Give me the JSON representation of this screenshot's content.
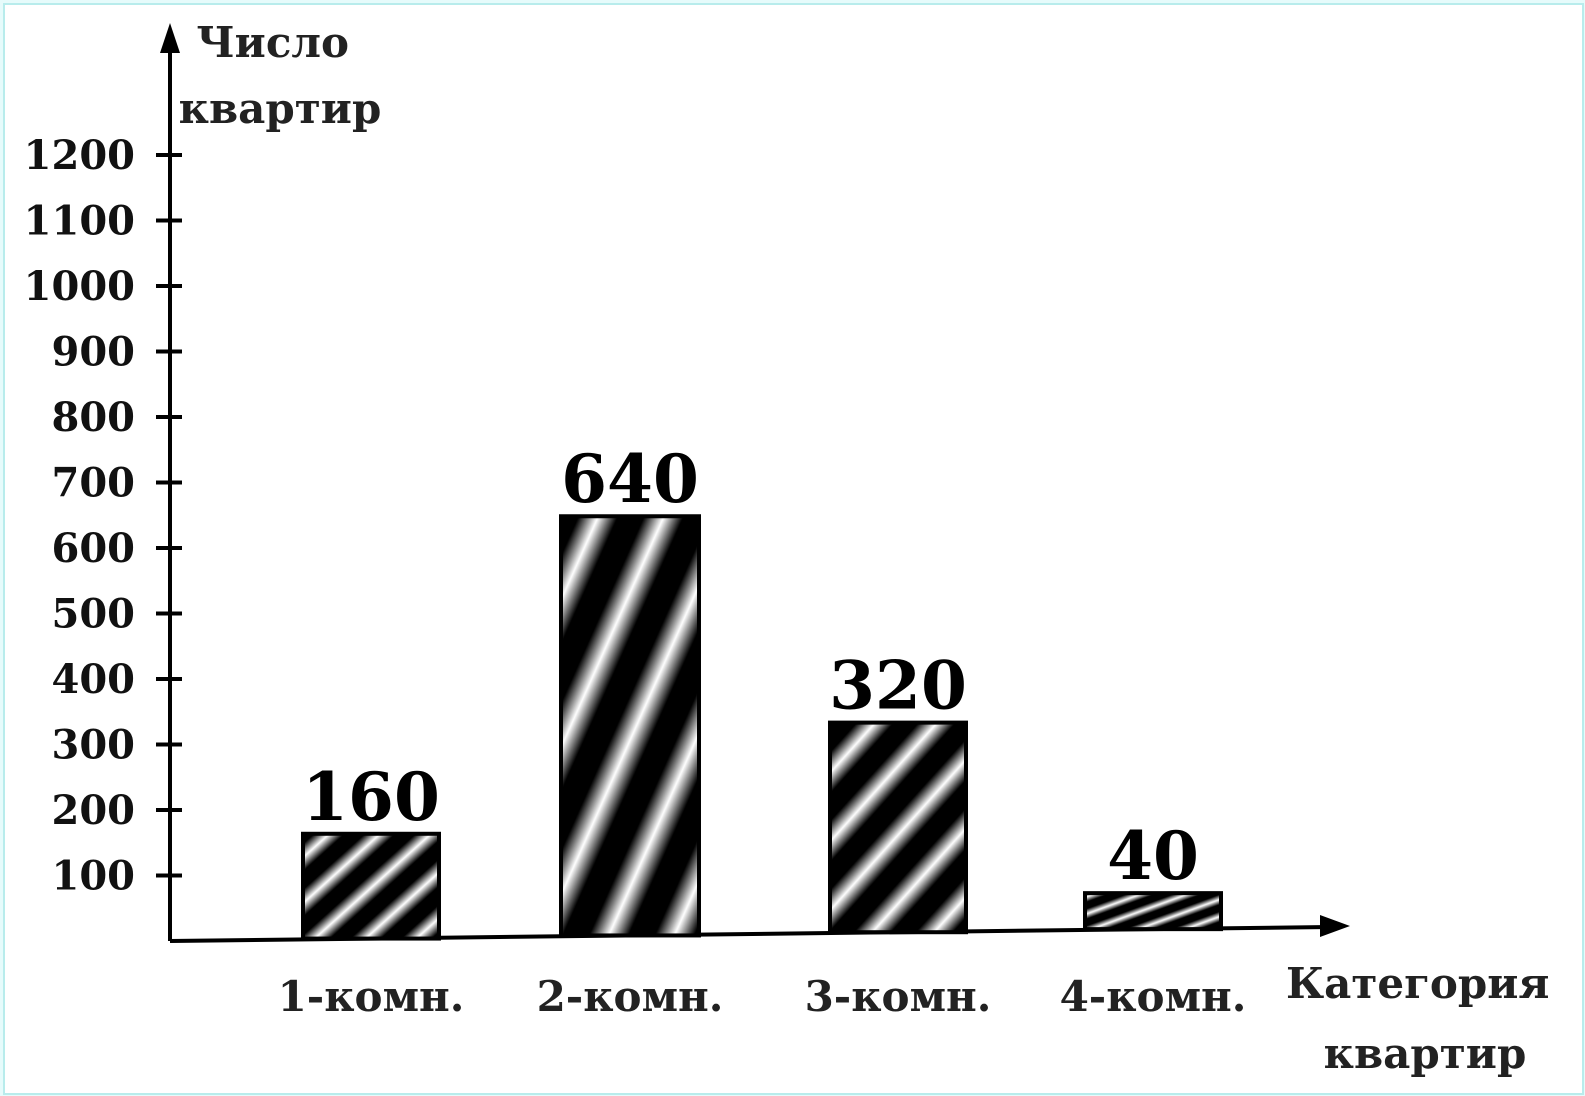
{
  "chart_data": {
    "type": "bar",
    "ylabel_lines": [
      "Число",
      "квартир"
    ],
    "xlabel_lines": [
      "Категория",
      "квартир"
    ],
    "categories": [
      "1-комн.",
      "2-комн.",
      "3-комн.",
      "4-комн."
    ],
    "values": [
      160,
      640,
      320,
      40
    ],
    "value_labels": [
      "160",
      "640",
      "320",
      "40"
    ],
    "yticks": [
      100,
      200,
      300,
      400,
      500,
      600,
      700,
      800,
      900,
      1000,
      1100,
      1200
    ],
    "ytick_labels": [
      "100",
      "200",
      "300",
      "400",
      "500",
      "600",
      "700",
      "800",
      "900",
      "1000",
      "1100",
      "1200"
    ],
    "ylim": [
      0,
      1200
    ],
    "grid": false,
    "bar_fill": "diagonal black-and-white stripes",
    "colors": {
      "bar_stripe_dark": "#000000",
      "bar_stripe_light": "#ffffff",
      "frame": "#b8ecec"
    }
  }
}
